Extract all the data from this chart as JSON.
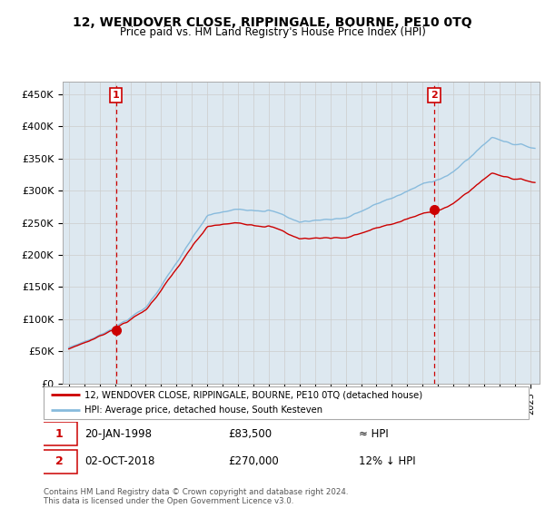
{
  "title": "12, WENDOVER CLOSE, RIPPINGALE, BOURNE, PE10 0TQ",
  "subtitle": "Price paid vs. HM Land Registry's House Price Index (HPI)",
  "ylim": [
    0,
    470000
  ],
  "yticks": [
    0,
    50000,
    100000,
    150000,
    200000,
    250000,
    300000,
    350000,
    400000,
    450000
  ],
  "ytick_labels": [
    "£0",
    "£50K",
    "£100K",
    "£150K",
    "£200K",
    "£250K",
    "£300K",
    "£350K",
    "£400K",
    "£450K"
  ],
  "sale1_date": "20-JAN-1998",
  "sale1_price": 83500,
  "sale1_year": 1998.055,
  "sale1_note": "≈ HPI",
  "sale2_date": "02-OCT-2018",
  "sale2_price": 270000,
  "sale2_year": 2018.753,
  "sale2_note": "12% ↓ HPI",
  "legend_line1": "12, WENDOVER CLOSE, RIPPINGALE, BOURNE, PE10 0TQ (detached house)",
  "legend_line2": "HPI: Average price, detached house, South Kesteven",
  "footer": "Contains HM Land Registry data © Crown copyright and database right 2024.\nThis data is licensed under the Open Government Licence v3.0.",
  "line_color_red": "#cc0000",
  "line_color_blue": "#88bbdd",
  "vline_color": "#cc0000",
  "grid_color": "#cccccc",
  "bg_color": "#dde8f0"
}
